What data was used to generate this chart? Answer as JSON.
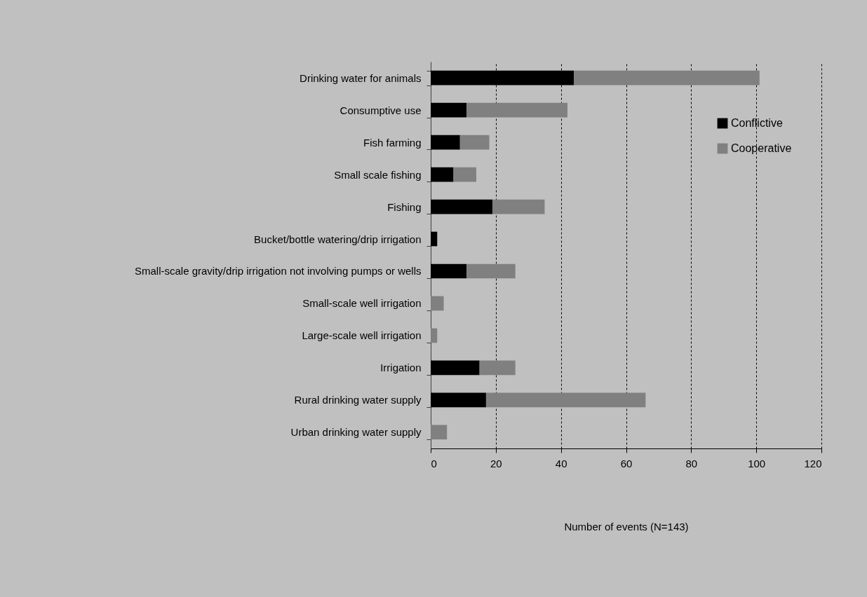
{
  "chart_data": {
    "type": "bar",
    "orientation": "horizontal",
    "stacked": true,
    "xlabel": "Number of events (N=143)",
    "categories": [
      "Drinking water for animals",
      "Consumptive use",
      "Fish farming",
      "Small scale fishing",
      "Fishing",
      "Bucket/bottle watering/drip irrigation",
      "Small-scale gravity/drip irrigation not involving pumps or wells",
      "Small-scale well irrigation",
      "Large-scale well irrigation",
      "Irrigation",
      "Rural drinking water supply",
      "Urban drinking water supply"
    ],
    "series": [
      {
        "name": "Conflictive",
        "color": "#000000",
        "values": [
          44,
          11,
          9,
          7,
          19,
          2,
          11,
          0,
          0,
          15,
          17,
          0
        ]
      },
      {
        "name": "Cooperative",
        "color": "#808080",
        "values": [
          57,
          31,
          9,
          7,
          16,
          0,
          15,
          4,
          2,
          11,
          49,
          5
        ]
      }
    ],
    "xlim": [
      0,
      120
    ],
    "xticks": [
      0,
      20,
      40,
      60,
      80,
      100,
      120
    ],
    "grid": "x",
    "legend": "top right"
  }
}
